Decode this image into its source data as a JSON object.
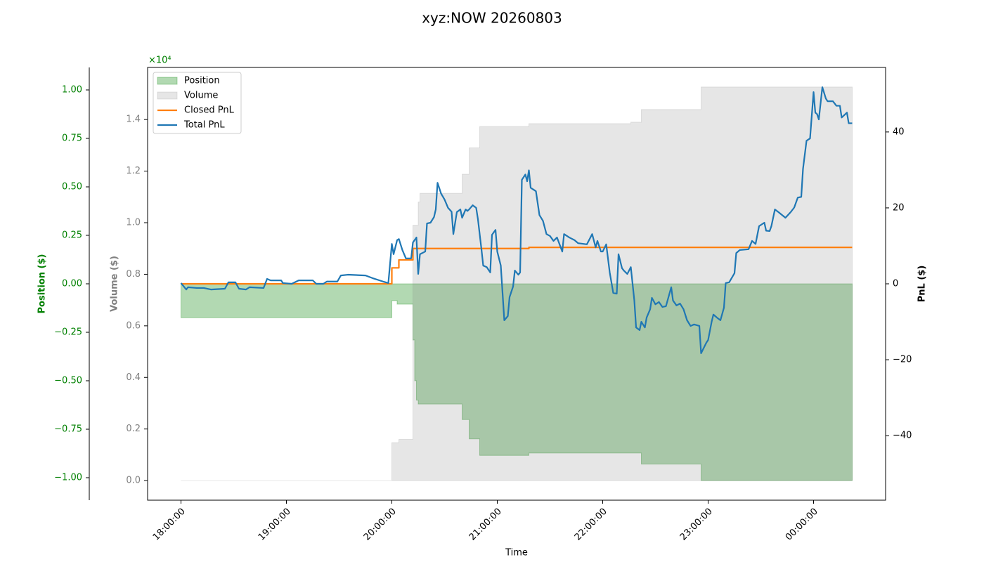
{
  "chart_data": {
    "type": "line",
    "title": "xyz:NOW 20260803",
    "xlabel": "Time",
    "ylabel": "Position ($)",
    "y_color": "#008000",
    "y_offset": "×10⁴",
    "y2label": "Volume ($)",
    "y2_color": "#808080",
    "y3label": "PnL ($)",
    "y3_color": "#000000",
    "xlim": [
      "17:41:00",
      "00:41:00"
    ],
    "xticks": [
      "18:00:00",
      "19:00:00",
      "20:00:00",
      "21:00:00",
      "22:00:00",
      "23:00:00",
      "00:00:00"
    ],
    "ylim": [
      -1.116,
      1.116
    ],
    "yticks": [
      {
        "value": -1,
        "label": "−1.00"
      },
      {
        "value": -0.75,
        "label": "−0.75"
      },
      {
        "value": -0.5,
        "label": "−0.50"
      },
      {
        "value": -0.25,
        "label": "−0.25"
      },
      {
        "value": 0,
        "label": "0.00"
      },
      0.25,
      {
        "value": 0.5,
        "label": "0.50"
      },
      0.75,
      {
        "value": 1,
        "label": "1.00"
      }
    ],
    "y2lim": [
      -0.076,
      1.602
    ],
    "y2ticks": [
      {
        "value": 0,
        "label": "0.0"
      },
      0.2,
      0.4,
      0.6,
      0.8,
      {
        "value": 1,
        "label": "1.0"
      },
      1.2,
      1.4
    ],
    "y3lim": [
      -57,
      57
    ],
    "y3ticks": [
      {
        "value": -40,
        "label": "−40"
      },
      {
        "value": -20,
        "label": "−20"
      },
      0,
      20,
      40
    ],
    "legend": "upper left",
    "series": [
      {
        "name": "Position",
        "color": "#008000",
        "alpha": 0.3,
        "fill": true,
        "step": true,
        "axis": "y",
        "x": [
          "18:00:00",
          "20:00:00",
          "20:03:00",
          "20:12:00",
          "20:13:00",
          "20:14:00",
          "20:15:00",
          "20:40:00",
          "20:44:00",
          "20:50:00",
          "21:18:00",
          "22:22:00",
          "22:56:00",
          "00:22:00"
        ],
        "values": [
          -0.175,
          -0.087,
          -0.105,
          -0.29,
          -0.5,
          -0.6,
          -0.62,
          -0.7,
          -0.8,
          -0.885,
          -0.873,
          -0.93,
          -1.015,
          -1.01
        ]
      },
      {
        "name": "Volume",
        "color": "#808080",
        "alpha": 0.2,
        "fill": true,
        "step": true,
        "axis": "y2",
        "x": [
          "18:00:00",
          "20:00:00",
          "20:04:00",
          "20:12:00",
          "20:15:00",
          "20:16:00",
          "20:40:00",
          "20:44:00",
          "20:50:00",
          "21:18:00",
          "22:16:00",
          "22:22:00",
          "22:56:00",
          "00:22:00"
        ],
        "values": [
          0,
          0.147,
          0.16,
          0.99,
          1.08,
          1.114,
          1.188,
          1.29,
          1.373,
          1.384,
          1.39,
          1.439,
          1.526,
          1.526
        ]
      },
      {
        "name": "Closed PnL",
        "color": "#ff7f0e",
        "step": true,
        "axis": "y3",
        "x": [
          "18:00:00",
          "20:00:00",
          "20:04:00",
          "20:12:00",
          "21:18:00",
          "00:22:00"
        ],
        "values": [
          0,
          4.2,
          6.3,
          9.3,
          9.6,
          9.6
        ]
      },
      {
        "name": "Total PnL",
        "color": "#1f77b4",
        "axis": "y3",
        "x": [
          "18:00:00",
          "18:03:00",
          "18:04:00",
          "18:09:00",
          "18:13:00",
          "18:17:00",
          "18:25:00",
          "18:27:00",
          "18:31:00",
          "18:33:00",
          "18:37:00",
          "18:39:00",
          "18:47:00",
          "18:49:00",
          "18:51:00",
          "18:57:00",
          "18:58:00",
          "19:03:00",
          "19:07:00",
          "19:15:00",
          "19:17:00",
          "19:21:00",
          "19:23:00",
          "19:29:00",
          "19:31:00",
          "19:35:00",
          "19:45:00",
          "19:49:00",
          "19:55:00",
          "19:58:00",
          "20:00:00",
          "20:01:00",
          "20:03:00",
          "20:04:00",
          "20:06:00",
          "20:08:00",
          "20:11:00",
          "20:12:00",
          "20:14:00",
          "20:15:00",
          "20:16:00",
          "20:19:00",
          "20:20:00",
          "20:22:00",
          "20:24:00",
          "20:25:00",
          "20:26:00",
          "20:28:00",
          "20:30:00",
          "20:32:00",
          "20:34:00",
          "20:35:00",
          "20:37:00",
          "20:39:00",
          "20:40:00",
          "20:42:00",
          "20:43:00",
          "20:44:00",
          "20:46:00",
          "20:48:00",
          "20:49:00",
          "20:51:00",
          "20:52:00",
          "20:54:00",
          "20:56:00",
          "20:57:00",
          "20:59:00",
          "21:00:00",
          "21:02:00",
          "21:04:00",
          "21:06:00",
          "21:07:00",
          "21:09:00",
          "21:10:00",
          "21:12:00",
          "21:13:00",
          "21:14:00",
          "21:16:00",
          "21:17:00",
          "21:18:00",
          "21:19:00",
          "21:22:00",
          "21:24:00",
          "21:26:00",
          "21:28:00",
          "21:30:00",
          "21:32:00",
          "21:34:00",
          "21:37:00",
          "21:38:00",
          "21:41:00",
          "21:44:00",
          "21:46:00",
          "21:51:00",
          "21:54:00",
          "21:56:00",
          "21:57:00",
          "21:59:00",
          "22:00:00",
          "22:02:00",
          "22:04:00",
          "22:06:00",
          "22:08:00",
          "22:09:00",
          "22:11:00",
          "22:12:00",
          "22:14:00",
          "22:16:00",
          "22:18:00",
          "22:19:00",
          "22:21:00",
          "22:22:00",
          "22:24:00",
          "22:25:00",
          "22:27:00",
          "22:28:00",
          "22:30:00",
          "22:32:00",
          "22:34:00",
          "22:36:00",
          "22:39:00",
          "22:40:00",
          "22:42:00",
          "22:44:00",
          "22:46:00",
          "22:48:00",
          "22:50:00",
          "22:52:00",
          "22:55:00",
          "22:56:00",
          "22:59:00",
          "23:00:00",
          "23:02:00",
          "23:03:00",
          "23:05:00",
          "23:07:00",
          "23:09:00",
          "23:10:00",
          "23:12:00",
          "23:15:00",
          "23:16:00",
          "23:18:00",
          "23:23:00",
          "23:25:00",
          "23:27:00",
          "23:29:00",
          "23:32:00",
          "23:33:00",
          "23:35:00",
          "23:36:00",
          "23:38:00",
          "23:40:00",
          "23:44:00",
          "23:47:00",
          "23:49:00",
          "23:51:00",
          "23:53:00",
          "23:54:00",
          "23:56:00",
          "23:58:00",
          "00:00:00",
          "00:01:00",
          "00:02:00",
          "00:03:00",
          "00:05:00",
          "00:07:00",
          "00:08:00",
          "00:11:00",
          "00:13:00",
          "00:15:00",
          "00:16:00",
          "00:19:00",
          "00:20:00",
          "00:22:00"
        ],
        "values": [
          0.2,
          -1.5,
          -0.9,
          -1.1,
          -1.1,
          -1.5,
          -1.3,
          0.4,
          0.4,
          -1.3,
          -1.5,
          -0.9,
          -1.1,
          1.3,
          0.9,
          0.9,
          0.2,
          0,
          0.9,
          0.9,
          0,
          0,
          0.6,
          0.6,
          2.2,
          2.4,
          2.2,
          1.5,
          0.6,
          0.2,
          10.5,
          7.8,
          11.5,
          11.8,
          8.9,
          6.7,
          6.7,
          10.9,
          12.2,
          2.6,
          7.8,
          8.5,
          15.9,
          16.1,
          17.6,
          19.6,
          26.6,
          23.8,
          22.2,
          20.0,
          19.0,
          13.1,
          18.9,
          19.6,
          17.4,
          19.6,
          19.2,
          19.6,
          20.7,
          20.0,
          17.0,
          9.1,
          4.8,
          4.4,
          3.0,
          12.9,
          14.2,
          8.5,
          4.8,
          -9.6,
          -8.5,
          -3.5,
          -0.7,
          3.5,
          2.4,
          3.0,
          27.4,
          28.8,
          27.0,
          29.9,
          25.3,
          24.4,
          18.1,
          16.6,
          13.1,
          12.6,
          11.3,
          12.2,
          8.5,
          13.1,
          12.2,
          11.5,
          10.7,
          10.4,
          13.1,
          9.6,
          11.3,
          8.5,
          8.5,
          10.4,
          3.0,
          -2.4,
          -2.6,
          7.8,
          4.1,
          3.5,
          2.6,
          4.4,
          -4.4,
          -11.5,
          -12.2,
          -10.0,
          -11.5,
          -8.9,
          -6.7,
          -3.7,
          -5.4,
          -4.8,
          -6.1,
          -5.9,
          -0.9,
          -4.4,
          -5.7,
          -5.2,
          -6.7,
          -9.6,
          -11.1,
          -10.7,
          -11.1,
          -18.3,
          -15.5,
          -14.8,
          -10.0,
          -8.1,
          -8.9,
          -9.6,
          -6.3,
          0.2,
          0.4,
          2.8,
          8.1,
          8.9,
          9.1,
          11.3,
          10.5,
          15.2,
          16.1,
          14.0,
          13.9,
          15.2,
          19.6,
          18.9,
          17.4,
          18.9,
          20.1,
          22.7,
          22.9,
          30.3,
          37.7,
          38.3,
          50.5,
          45.1,
          44.7,
          43.3,
          51.8,
          48.8,
          48.1,
          48.1,
          46.9,
          46.9,
          43.8,
          45.1,
          42.3,
          42.3
        ]
      }
    ]
  }
}
